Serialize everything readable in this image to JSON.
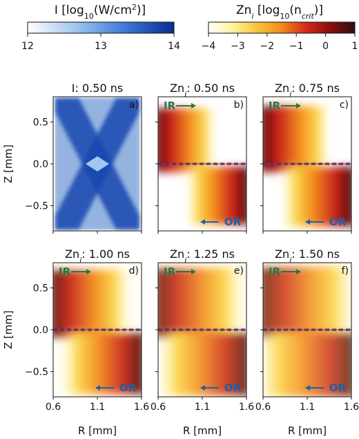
{
  "colorbars": [
    {
      "title_main": "I [log",
      "title_sub": "10",
      "title_rest": "(W/cm",
      "title_sup": "2",
      "title_end": ")]",
      "ticks": [
        "12",
        "13",
        "14"
      ],
      "tick_values": [
        12,
        13,
        14
      ],
      "range": [
        12,
        14
      ],
      "colormap": [
        "#ffffff",
        "#9dc4ee",
        "#3d78d8",
        "#0c2c8c"
      ]
    },
    {
      "title_main": "Zn",
      "title_sub_i": "i",
      "title_rest": " [log",
      "title_sub": "10",
      "title_paren": "(n",
      "title_sub2": "crit",
      "title_end": ")]",
      "ticks": [
        "−4",
        "−3",
        "−2",
        "−1",
        "0",
        "1"
      ],
      "tick_values": [
        -4,
        -3,
        -2,
        -1,
        0,
        1
      ],
      "range": [
        -4,
        1
      ],
      "colormap": [
        "#ffffff",
        "#fdf29a",
        "#f7c43a",
        "#f08a1c",
        "#d22a1a",
        "#8a0d0d",
        "#2a1010"
      ]
    }
  ],
  "chart_data": {
    "type": "heatmap",
    "xlabel": "R [mm]",
    "ylabel": "Z [mm]",
    "xlim": [
      0.6,
      1.6
    ],
    "ylim": [
      -0.8,
      0.8
    ],
    "xticks": [
      "0.6",
      "1.1",
      "1.6"
    ],
    "xtick_values": [
      0.6,
      1.1,
      1.6
    ],
    "yticks": [
      "0.5",
      "0.0",
      "−0.5"
    ],
    "ytick_values": [
      0.5,
      0.0,
      -0.5
    ],
    "panels": [
      {
        "title_a": "I: 0.50 ns",
        "title_b": "",
        "label": "a)",
        "kind": "intensity"
      },
      {
        "title_a": "Zn",
        "title_b": ": 0.50 ns",
        "label": "b)",
        "kind": "density",
        "spread": 0.35
      },
      {
        "title_a": "Zn",
        "title_b": ": 0.75 ns",
        "label": "c)",
        "kind": "density",
        "spread": 0.55
      },
      {
        "title_a": "Zn",
        "title_b": ": 1.00 ns",
        "label": "d)",
        "kind": "density",
        "spread": 0.75
      },
      {
        "title_a": "Zn",
        "title_b": ": 1.25 ns",
        "label": "e)",
        "kind": "density",
        "spread": 0.9
      },
      {
        "title_a": "Zn",
        "title_b": ": 1.50 ns",
        "label": "f)",
        "kind": "density",
        "spread": 1.0
      }
    ],
    "ir_label": "IR",
    "or_label": "OR"
  }
}
